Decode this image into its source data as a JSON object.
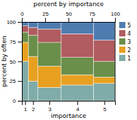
{
  "chart_data": {
    "type": "bar",
    "stacked": true,
    "xlabel": "importance",
    "ylabel": "percent by often",
    "x2label": "percent by importance",
    "categories": [
      "1",
      "2",
      "3",
      "4",
      "5"
    ],
    "widths": [
      0.07,
      0.1,
      0.25,
      0.35,
      0.23
    ],
    "series": [
      {
        "name": "1",
        "color": "#7faba8",
        "values": [
          50,
          25,
          17,
          20,
          22
        ]
      },
      {
        "name": "2",
        "color": "#e8a020",
        "values": [
          24,
          31,
          27,
          13,
          8
        ]
      },
      {
        "name": "3",
        "color": "#6a8f4a",
        "values": [
          13,
          27,
          30,
          22,
          20
        ]
      },
      {
        "name": "4",
        "color": "#b05c60",
        "values": [
          8,
          10,
          17,
          30,
          27
        ]
      },
      {
        "name": "5",
        "color": "#4f7cb0",
        "values": [
          5,
          7,
          9,
          15,
          23
        ]
      }
    ],
    "ylim": [
      0,
      100
    ],
    "yticks": [
      0,
      25,
      50,
      75,
      100
    ],
    "x2lim": [
      0,
      1
    ],
    "x2ticks": [
      0,
      {
        "value": 0.25,
        "label": "25"
      },
      {
        "value": 0.5,
        "label": "50"
      },
      {
        "value": 0.75,
        "label": "75"
      },
      {
        "value": 1.0,
        "label": "100"
      }
    ],
    "legend": "right"
  }
}
